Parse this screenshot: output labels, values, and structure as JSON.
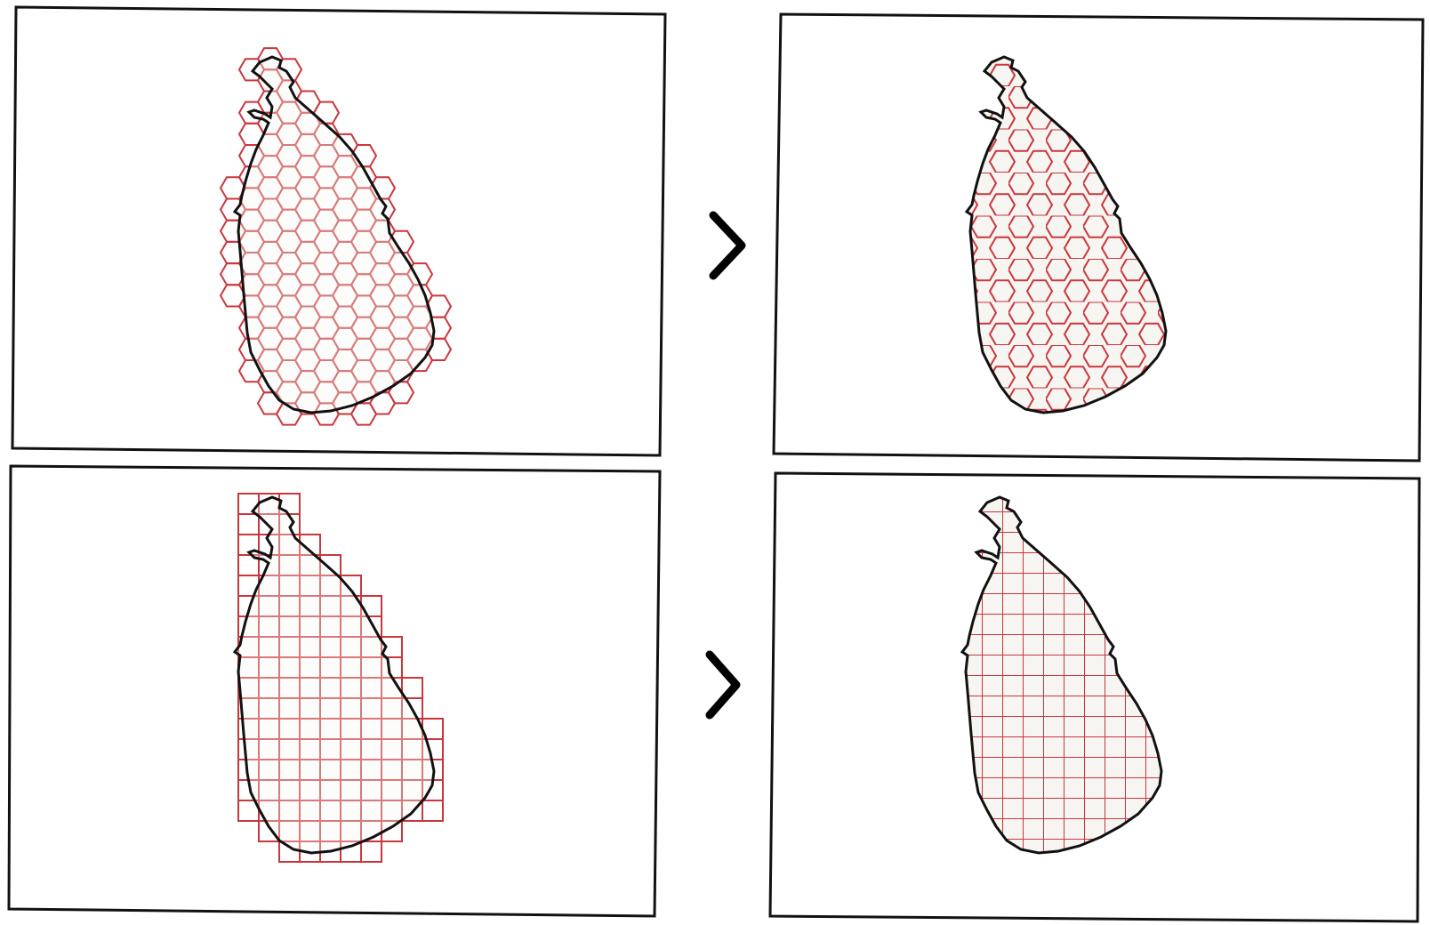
{
  "colors": {
    "background": "#ffffff",
    "frame": "#111111",
    "outline": "#111111",
    "land_fill": "#f6f5f1",
    "grid": "#c9373d",
    "arrow": "#000000"
  },
  "panels": [
    {
      "id": "hex-before",
      "grid": "hexagon",
      "clipped": false
    },
    {
      "id": "hex-after",
      "grid": "hexagon",
      "clipped": true
    },
    {
      "id": "square-before",
      "grid": "square",
      "clipped": false
    },
    {
      "id": "square-after",
      "grid": "square",
      "clipped": true
    }
  ],
  "arrows": [
    {
      "icon": "chevron-right-icon",
      "from": "hex-before",
      "to": "hex-after"
    },
    {
      "icon": "chevron-right-icon",
      "from": "square-before",
      "to": "square-after"
    }
  ]
}
